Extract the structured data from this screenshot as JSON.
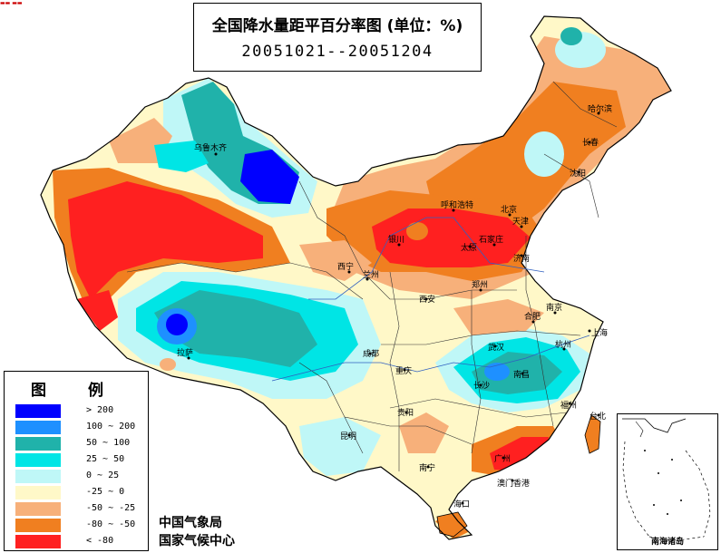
{
  "title": {
    "main": "全国降水量距平百分率图 (单位：%)",
    "date": "20051021--20051204"
  },
  "legend": {
    "title": "图 例",
    "items": [
      {
        "label": "> 200",
        "color": "#0000ff"
      },
      {
        "label": "100 ~ 200",
        "color": "#1e90ff"
      },
      {
        "label": "50 ~ 100",
        "color": "#20b2aa"
      },
      {
        "label": "25 ~ 50",
        "color": "#00e5e5"
      },
      {
        "label": "0 ~ 25",
        "color": "#bff7f7"
      },
      {
        "label": "-25 ~ 0",
        "color": "#fff8c8"
      },
      {
        "label": "-50 ~ -25",
        "color": "#f7b07a"
      },
      {
        "label": "-80 ~ -50",
        "color": "#f07f20"
      },
      {
        "label": "< -80",
        "color": "#ff2020"
      }
    ]
  },
  "agency": {
    "line1": "中国气象局",
    "line2": "国家气候中心"
  },
  "inset": {
    "label": "南海诸岛"
  },
  "cities": {
    "urumqi": "乌鲁木齐",
    "lhasa": "拉萨",
    "xining": "西宁",
    "lanzhou": "兰州",
    "yinchuan": "银川",
    "hohhot": "呼和浩特",
    "beijing": "北京",
    "tianjin": "天津",
    "shijiazhuang": "石家庄",
    "taiyuan": "太原",
    "jinan": "济南",
    "zhengzhou": "郑州",
    "xian": "西安",
    "harbin": "哈尔滨",
    "changchun": "长春",
    "shenyang": "沈阳",
    "hefei": "合肥",
    "nanjing": "南京",
    "shanghai": "上海",
    "hangzhou": "杭州",
    "wuhan": "武汉",
    "changsha": "长沙",
    "nanchang": "南昌",
    "fuzhou": "福州",
    "taibei": "台北",
    "chengdu": "成都",
    "chongqing": "重庆",
    "guiyang": "贵阳",
    "kunming": "昆明",
    "nanning": "南宁",
    "guangzhou": "广州",
    "macau_hk": "澳门香港",
    "haikou": "海口"
  }
}
